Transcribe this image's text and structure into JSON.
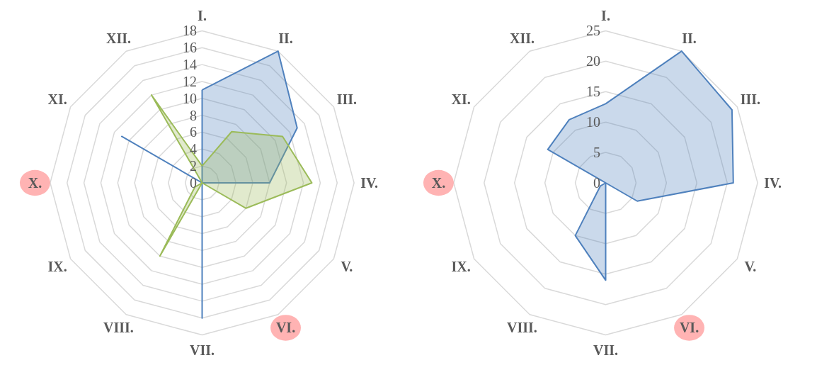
{
  "chart_data": [
    {
      "type": "radar",
      "categories": [
        "I.",
        "II.",
        "III.",
        "IV.",
        "V.",
        "VI.",
        "VII.",
        "VIII.",
        "IX.",
        "X.",
        "XI.",
        "XII."
      ],
      "ylim": [
        0,
        18
      ],
      "yticks": [
        0,
        2,
        4,
        6,
        8,
        10,
        12,
        14,
        16,
        18
      ],
      "grid": true,
      "series": [
        {
          "color": "#4f81bd",
          "values": [
            11,
            18,
            13,
            8,
            0,
            0,
            16,
            0,
            0,
            0,
            11,
            0
          ]
        },
        {
          "color": "#9bbb59",
          "values": [
            2,
            7,
            11,
            13,
            6,
            0,
            0,
            10,
            1,
            0,
            0,
            12
          ]
        }
      ]
    },
    {
      "type": "radar",
      "categories": [
        "I.",
        "II.",
        "III.",
        "IV.",
        "V.",
        "VI.",
        "VII.",
        "VIII.",
        "IX.",
        "X.",
        "XI.",
        "XII."
      ],
      "ylim": [
        0,
        25
      ],
      "yticks": [
        0,
        5,
        10,
        15,
        20,
        25
      ],
      "grid": true,
      "series": [
        {
          "color": "#4f81bd",
          "values": [
            13,
            25,
            24,
            21,
            6,
            0,
            16,
            10,
            1,
            0,
            11,
            12
          ]
        }
      ]
    }
  ]
}
